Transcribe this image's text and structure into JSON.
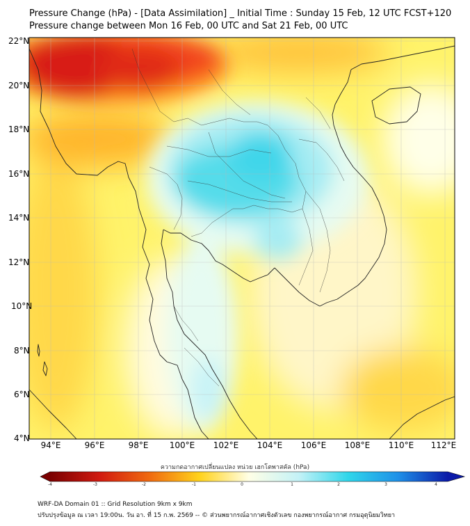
{
  "title": {
    "line1": "Pressure Change (hPa) - [Data Assimilation] _ Initial Time : Sunday 15 Feb, 12 UTC FCST+120",
    "line2": "Pressure change between Mon 16 Feb, 00 UTC and Sat 21 Feb, 00 UTC"
  },
  "y_axis": {
    "ticks": [
      "22°N",
      "20°N",
      "18°N",
      "16°N",
      "14°N",
      "12°N",
      "10°N",
      "8°N",
      "6°N",
      "4°N"
    ]
  },
  "x_axis": {
    "ticks": [
      "94°E",
      "96°E",
      "98°E",
      "100°E",
      "102°E",
      "104°E",
      "106°E",
      "108°E",
      "110°E",
      "112°E"
    ]
  },
  "colorbar": {
    "title": "ความกดอากาศเปลี่ยนแปลง หน่วย เฮกโตพาสคัล (hPa)",
    "labels": [
      "-4",
      "-3",
      "-2",
      "-1",
      "0",
      "1",
      "2",
      "3",
      "4"
    ],
    "range": [
      -4,
      4
    ],
    "colors": {
      "neg4": "#7a0000",
      "neg3": "#d11a10",
      "neg2": "#f06a10",
      "neg1": "#ffd21a",
      "zero": "#ffffe6",
      "pos1": "#c4f2f7",
      "pos2": "#2fd6ea",
      "pos3": "#1e90e8",
      "pos4": "#0b1aa8"
    }
  },
  "footer": {
    "line1": "WRF-DA Domain 01 :: Grid Resolution 9km x 9km",
    "line2": "ปรับปรุงข้อมูล ณ เวลา 19:00น. วัน อา. ที่ 15 ก.พ. 2569 -- © ส่วนพยากรณ์อากาศเชิงตัวเลข กองพยากรณ์อากาศ กรมอุตุนิยมวิทยา"
  }
}
